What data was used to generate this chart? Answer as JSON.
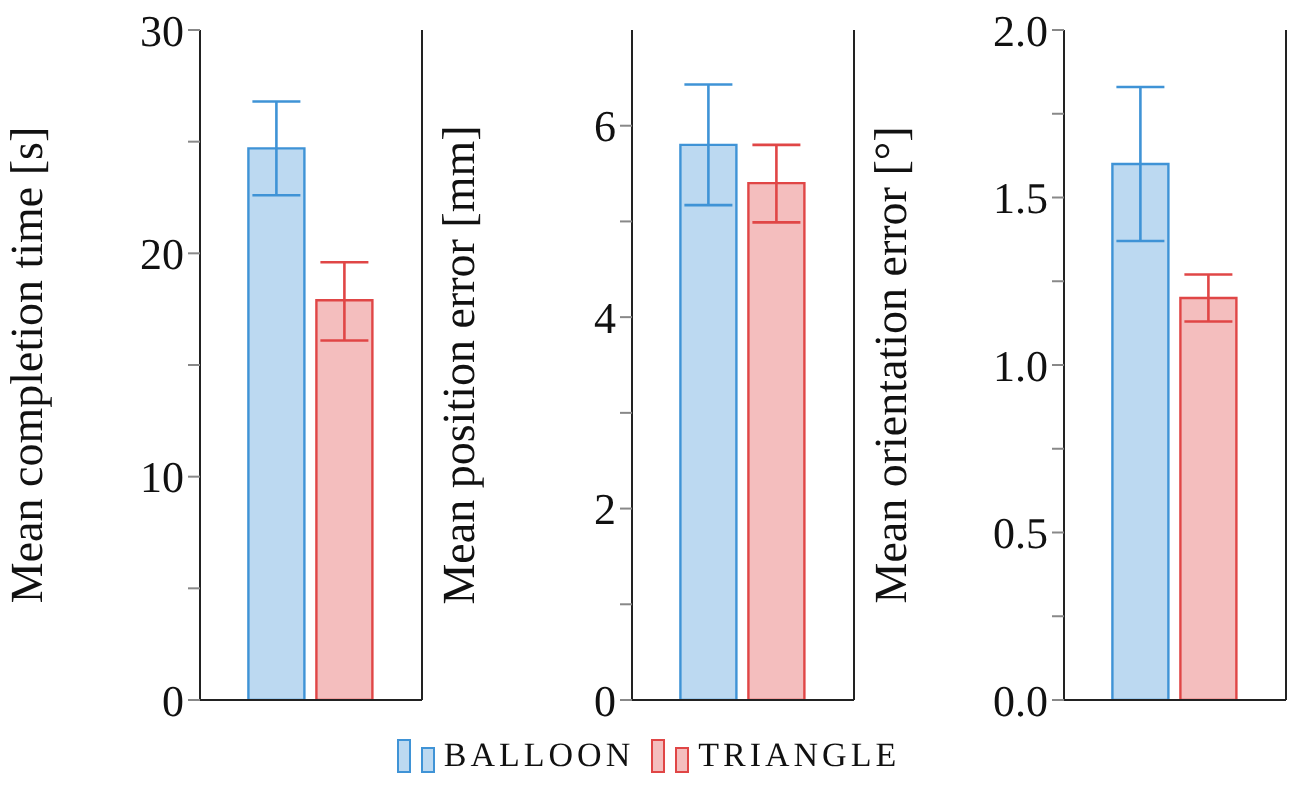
{
  "chart_data": [
    {
      "type": "bar",
      "ylabel": "Mean completion time [s]",
      "categories": [
        null
      ],
      "ylim": [
        0,
        30
      ],
      "yticks": [
        0,
        {
          "value": 5,
          "label": null
        },
        10,
        {
          "value": 15,
          "label": null
        },
        20,
        {
          "value": 25,
          "label": null
        },
        30
      ],
      "grid": false,
      "legend": "bottom",
      "series": [
        {
          "name": "BALLOON",
          "color": "#3f93d6",
          "values": [
            24.7
          ],
          "errors": [
            [
              22.6,
              26.8
            ]
          ]
        },
        {
          "name": "TRIANGLE",
          "color": "#e04646",
          "values": [
            17.9
          ],
          "errors": [
            [
              16.1,
              19.6
            ]
          ]
        }
      ]
    },
    {
      "type": "bar",
      "ylabel": "Mean position error [mm]",
      "categories": [
        null
      ],
      "ylim": [
        0,
        7
      ],
      "yticks": [
        0,
        {
          "value": 1,
          "label": null
        },
        2,
        {
          "value": 3,
          "label": null
        },
        4,
        {
          "value": 5,
          "label": null
        },
        6
      ],
      "grid": false,
      "series": [
        {
          "color": "#3f93d6",
          "values": [
            5.8
          ],
          "errors": [
            [
              5.17,
              6.43
            ]
          ]
        },
        {
          "color": "#e04646",
          "values": [
            5.4
          ],
          "errors": [
            [
              4.99,
              5.8
            ]
          ]
        }
      ]
    },
    {
      "type": "bar",
      "ylabel": "Mean orientation error [°]",
      "categories": [
        null
      ],
      "ylim": [
        0,
        2
      ],
      "yticks": [
        {
          "value": 0,
          "label": "0.0"
        },
        {
          "value": 0.25,
          "label": null
        },
        {
          "value": 0.5,
          "label": "0.5"
        },
        {
          "value": 0.75,
          "label": null
        },
        {
          "value": 1,
          "label": "1.0"
        },
        {
          "value": 1.25,
          "label": null
        },
        {
          "value": 1.5,
          "label": "1.5"
        },
        {
          "value": 1.75,
          "label": null
        },
        {
          "value": 2,
          "label": "2.0"
        }
      ],
      "grid": false,
      "series": [
        {
          "color": "#3f93d6",
          "values": [
            1.6
          ],
          "errors": [
            [
              1.37,
              1.83
            ]
          ]
        },
        {
          "color": "#e04646",
          "values": [
            1.2
          ],
          "errors": [
            [
              1.13,
              1.27
            ]
          ]
        }
      ]
    }
  ]
}
